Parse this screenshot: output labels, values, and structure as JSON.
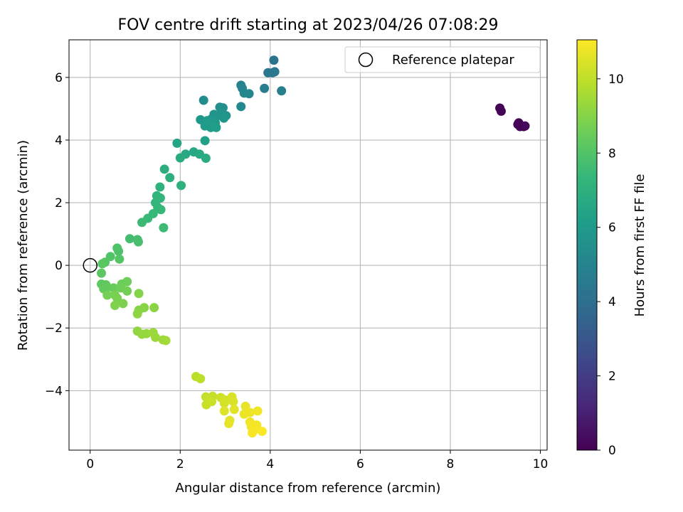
{
  "chart_data": {
    "type": "scatter",
    "title": "FOV centre drift starting at 2023/04/26 07:08:29",
    "xlabel": "Angular distance from reference (arcmin)",
    "ylabel": "Rotation from reference (arcmin)",
    "xlim": [
      -0.47,
      10.15
    ],
    "ylim": [
      -5.9,
      7.2
    ],
    "xticks": [
      0,
      2,
      4,
      6,
      8,
      10
    ],
    "yticks": [
      -4,
      -2,
      0,
      2,
      4,
      6
    ],
    "grid": true,
    "legend": {
      "placement": "upper-right",
      "entries": [
        {
          "label": "Reference platepar",
          "marker": "open-circle"
        }
      ]
    },
    "reference_point": {
      "x": 0,
      "y": 0
    },
    "colorbar": {
      "label": "Hours from first FF file",
      "min": 0,
      "max": 11.05,
      "ticks": [
        0,
        2,
        4,
        6,
        8,
        10
      ],
      "colormap": "viridis"
    },
    "points": [
      {
        "x": 9.1,
        "y": 5.02,
        "c": 0.05
      },
      {
        "x": 9.13,
        "y": 4.92,
        "c": 0.08
      },
      {
        "x": 9.5,
        "y": 4.5,
        "c": 0.15
      },
      {
        "x": 9.55,
        "y": 4.43,
        "c": 0.18
      },
      {
        "x": 9.63,
        "y": 4.43,
        "c": 0.2
      },
      {
        "x": 9.66,
        "y": 4.45,
        "c": 0.22
      },
      {
        "x": 9.52,
        "y": 4.55,
        "c": 0.12
      },
      {
        "x": 4.08,
        "y": 6.55,
        "c": 4.2
      },
      {
        "x": 3.95,
        "y": 6.15,
        "c": 4.4
      },
      {
        "x": 4.05,
        "y": 6.15,
        "c": 4.45
      },
      {
        "x": 4.1,
        "y": 6.18,
        "c": 4.5
      },
      {
        "x": 3.87,
        "y": 5.65,
        "c": 4.7
      },
      {
        "x": 4.25,
        "y": 5.57,
        "c": 4.75
      },
      {
        "x": 3.35,
        "y": 5.75,
        "c": 4.9
      },
      {
        "x": 3.38,
        "y": 5.65,
        "c": 5.0
      },
      {
        "x": 3.42,
        "y": 5.5,
        "c": 5.05
      },
      {
        "x": 3.53,
        "y": 5.48,
        "c": 5.1
      },
      {
        "x": 3.35,
        "y": 5.07,
        "c": 5.2
      },
      {
        "x": 2.52,
        "y": 5.27,
        "c": 5.4
      },
      {
        "x": 2.88,
        "y": 5.05,
        "c": 5.5
      },
      {
        "x": 2.95,
        "y": 5.03,
        "c": 5.55
      },
      {
        "x": 2.92,
        "y": 4.9,
        "c": 5.6
      },
      {
        "x": 3.02,
        "y": 4.78,
        "c": 5.65
      },
      {
        "x": 2.75,
        "y": 4.82,
        "c": 5.7
      },
      {
        "x": 2.85,
        "y": 4.78,
        "c": 5.75
      },
      {
        "x": 2.7,
        "y": 4.68,
        "c": 5.8
      },
      {
        "x": 2.97,
        "y": 4.7,
        "c": 5.85
      },
      {
        "x": 2.45,
        "y": 4.65,
        "c": 5.9
      },
      {
        "x": 2.6,
        "y": 4.62,
        "c": 5.95
      },
      {
        "x": 2.78,
        "y": 4.55,
        "c": 6.0
      },
      {
        "x": 2.55,
        "y": 4.45,
        "c": 6.05
      },
      {
        "x": 2.68,
        "y": 4.4,
        "c": 6.1
      },
      {
        "x": 2.8,
        "y": 4.4,
        "c": 6.15
      },
      {
        "x": 2.55,
        "y": 3.98,
        "c": 6.3
      },
      {
        "x": 1.93,
        "y": 3.9,
        "c": 6.5
      },
      {
        "x": 2.3,
        "y": 3.62,
        "c": 6.6
      },
      {
        "x": 2.12,
        "y": 3.55,
        "c": 6.65
      },
      {
        "x": 2.43,
        "y": 3.55,
        "c": 6.7
      },
      {
        "x": 2.0,
        "y": 3.43,
        "c": 6.75
      },
      {
        "x": 2.57,
        "y": 3.42,
        "c": 6.8
      },
      {
        "x": 1.65,
        "y": 3.07,
        "c": 6.9
      },
      {
        "x": 1.77,
        "y": 2.8,
        "c": 7.0
      },
      {
        "x": 2.02,
        "y": 2.55,
        "c": 7.05
      },
      {
        "x": 1.55,
        "y": 2.5,
        "c": 7.1
      },
      {
        "x": 1.48,
        "y": 2.22,
        "c": 7.15
      },
      {
        "x": 1.56,
        "y": 2.15,
        "c": 7.2
      },
      {
        "x": 1.45,
        "y": 2.0,
        "c": 7.25
      },
      {
        "x": 1.5,
        "y": 1.85,
        "c": 7.3
      },
      {
        "x": 1.57,
        "y": 1.78,
        "c": 7.35
      },
      {
        "x": 1.4,
        "y": 1.65,
        "c": 7.4
      },
      {
        "x": 1.28,
        "y": 1.5,
        "c": 7.45
      },
      {
        "x": 1.15,
        "y": 1.37,
        "c": 7.5
      },
      {
        "x": 1.63,
        "y": 1.2,
        "c": 7.55
      },
      {
        "x": 0.88,
        "y": 0.85,
        "c": 7.7
      },
      {
        "x": 1.05,
        "y": 0.82,
        "c": 7.75
      },
      {
        "x": 1.07,
        "y": 0.75,
        "c": 7.8
      },
      {
        "x": 0.6,
        "y": 0.55,
        "c": 7.9
      },
      {
        "x": 0.63,
        "y": 0.45,
        "c": 7.95
      },
      {
        "x": 0.45,
        "y": 0.28,
        "c": 8.0
      },
      {
        "x": 0.65,
        "y": 0.2,
        "c": 8.05
      },
      {
        "x": 0.33,
        "y": 0.1,
        "c": 8.1
      },
      {
        "x": 0.27,
        "y": 0.05,
        "c": 8.15
      },
      {
        "x": 0.25,
        "y": -0.25,
        "c": 8.2
      },
      {
        "x": 0.25,
        "y": -0.6,
        "c": 8.25
      },
      {
        "x": 0.35,
        "y": -0.62,
        "c": 8.3
      },
      {
        "x": 0.38,
        "y": -0.7,
        "c": 8.35
      },
      {
        "x": 0.3,
        "y": -0.75,
        "c": 8.4
      },
      {
        "x": 0.52,
        "y": -0.72,
        "c": 8.45
      },
      {
        "x": 0.7,
        "y": -0.6,
        "c": 8.5
      },
      {
        "x": 0.82,
        "y": -0.52,
        "c": 8.55
      },
      {
        "x": 0.68,
        "y": -0.72,
        "c": 8.6
      },
      {
        "x": 0.82,
        "y": -0.82,
        "c": 8.65
      },
      {
        "x": 0.38,
        "y": -0.95,
        "c": 8.7
      },
      {
        "x": 0.55,
        "y": -0.95,
        "c": 8.75
      },
      {
        "x": 0.6,
        "y": -1.05,
        "c": 8.8
      },
      {
        "x": 0.73,
        "y": -1.22,
        "c": 8.85
      },
      {
        "x": 0.55,
        "y": -1.28,
        "c": 8.9
      },
      {
        "x": 1.08,
        "y": -0.9,
        "c": 8.95
      },
      {
        "x": 1.08,
        "y": -1.43,
        "c": 9.0
      },
      {
        "x": 1.2,
        "y": -1.35,
        "c": 9.05
      },
      {
        "x": 1.42,
        "y": -1.35,
        "c": 9.1
      },
      {
        "x": 1.05,
        "y": -1.55,
        "c": 9.15
      },
      {
        "x": 1.05,
        "y": -2.1,
        "c": 9.2
      },
      {
        "x": 1.15,
        "y": -2.2,
        "c": 9.25
      },
      {
        "x": 1.25,
        "y": -2.18,
        "c": 9.3
      },
      {
        "x": 1.4,
        "y": -2.15,
        "c": 9.35
      },
      {
        "x": 1.45,
        "y": -2.3,
        "c": 9.4
      },
      {
        "x": 1.62,
        "y": -2.38,
        "c": 9.45
      },
      {
        "x": 1.68,
        "y": -2.4,
        "c": 9.5
      },
      {
        "x": 2.35,
        "y": -3.55,
        "c": 9.9
      },
      {
        "x": 2.45,
        "y": -3.62,
        "c": 9.95
      },
      {
        "x": 2.57,
        "y": -4.2,
        "c": 10.0
      },
      {
        "x": 2.63,
        "y": -4.25,
        "c": 10.05
      },
      {
        "x": 2.72,
        "y": -4.18,
        "c": 10.1
      },
      {
        "x": 2.58,
        "y": -4.45,
        "c": 10.15
      },
      {
        "x": 2.7,
        "y": -4.35,
        "c": 10.2
      },
      {
        "x": 2.9,
        "y": -4.22,
        "c": 10.25
      },
      {
        "x": 3.0,
        "y": -4.3,
        "c": 10.3
      },
      {
        "x": 2.98,
        "y": -4.4,
        "c": 10.35
      },
      {
        "x": 3.15,
        "y": -4.2,
        "c": 10.4
      },
      {
        "x": 3.18,
        "y": -4.35,
        "c": 10.45
      },
      {
        "x": 2.98,
        "y": -4.65,
        "c": 10.5
      },
      {
        "x": 3.2,
        "y": -4.6,
        "c": 10.55
      },
      {
        "x": 3.1,
        "y": -4.95,
        "c": 10.6
      },
      {
        "x": 3.08,
        "y": -5.05,
        "c": 10.65
      },
      {
        "x": 3.45,
        "y": -4.5,
        "c": 10.7
      },
      {
        "x": 3.42,
        "y": -4.75,
        "c": 10.75
      },
      {
        "x": 3.55,
        "y": -4.7,
        "c": 10.8
      },
      {
        "x": 3.72,
        "y": -4.65,
        "c": 10.82
      },
      {
        "x": 3.55,
        "y": -5.0,
        "c": 10.85
      },
      {
        "x": 3.58,
        "y": -5.15,
        "c": 10.88
      },
      {
        "x": 3.7,
        "y": -5.1,
        "c": 10.9
      },
      {
        "x": 3.65,
        "y": -5.25,
        "c": 10.93
      },
      {
        "x": 3.6,
        "y": -5.35,
        "c": 10.96
      },
      {
        "x": 3.82,
        "y": -5.3,
        "c": 11.0
      }
    ]
  }
}
